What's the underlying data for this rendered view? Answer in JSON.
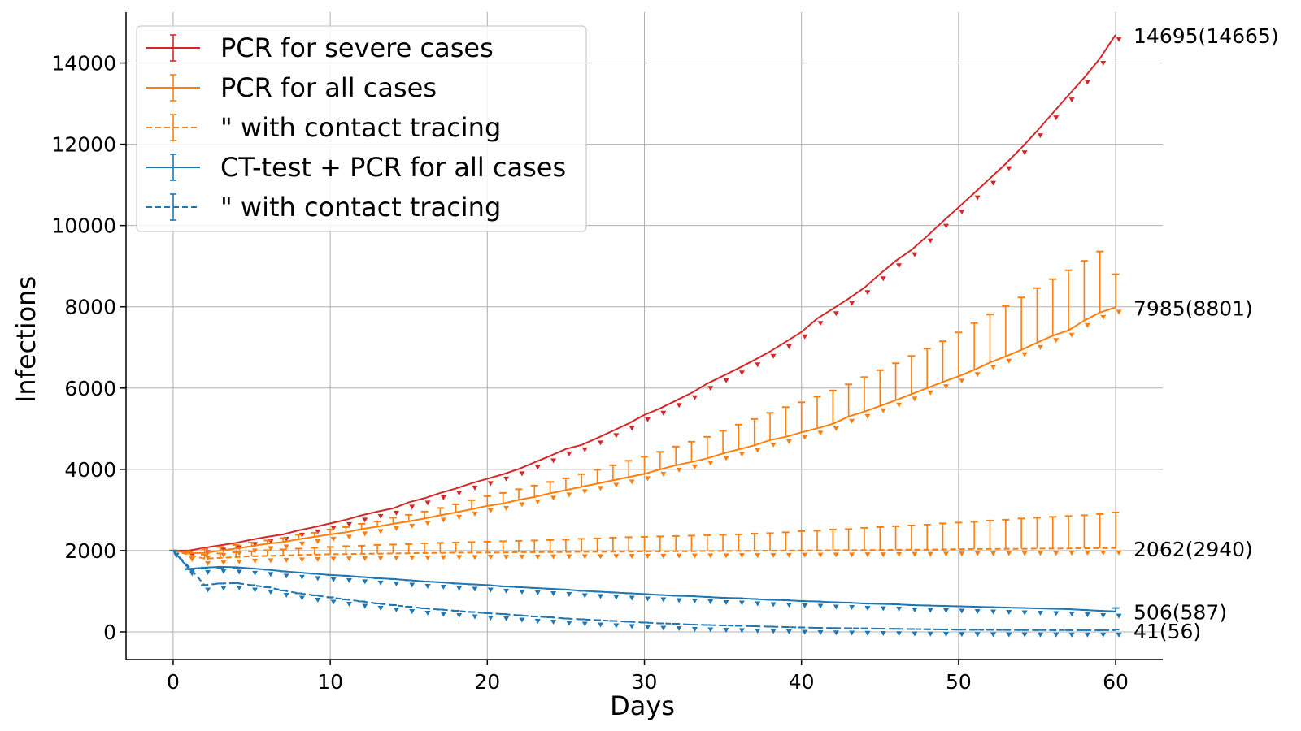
{
  "chart_data": {
    "type": "line",
    "xlabel": "Days",
    "ylabel": "Infections",
    "xlim": [
      -3,
      63
    ],
    "ylim": [
      -680,
      15250
    ],
    "xticks": [
      0,
      10,
      20,
      30,
      40,
      50,
      60
    ],
    "yticks": [
      0,
      2000,
      4000,
      6000,
      8000,
      10000,
      12000,
      14000
    ],
    "grid": true,
    "legend_position": "top-left",
    "x": [
      0,
      1,
      2,
      3,
      4,
      5,
      6,
      7,
      8,
      9,
      10,
      11,
      12,
      13,
      14,
      15,
      16,
      17,
      18,
      19,
      20,
      21,
      22,
      23,
      24,
      25,
      26,
      27,
      28,
      29,
      30,
      31,
      32,
      33,
      34,
      35,
      36,
      37,
      38,
      39,
      40,
      41,
      42,
      43,
      44,
      45,
      46,
      47,
      48,
      49,
      50,
      51,
      52,
      53,
      54,
      55,
      56,
      57,
      58,
      59,
      60
    ],
    "series": [
      {
        "name": "PCR for severe cases",
        "color": "#d62728",
        "dashed": false,
        "values": [
          2000,
          2000,
          2070,
          2130,
          2190,
          2270,
          2340,
          2400,
          2500,
          2580,
          2670,
          2760,
          2870,
          2960,
          3040,
          3190,
          3290,
          3420,
          3530,
          3660,
          3770,
          3880,
          4010,
          4170,
          4330,
          4500,
          4600,
          4770,
          4950,
          5130,
          5340,
          5500,
          5690,
          5880,
          6110,
          6300,
          6490,
          6690,
          6900,
          7140,
          7380,
          7710,
          7950,
          8200,
          8470,
          8810,
          9130,
          9400,
          9740,
          10100,
          10450,
          10800,
          11160,
          11520,
          11910,
          12330,
          12770,
          13210,
          13640,
          14110,
          14695
        ],
        "error_upper": [],
        "end_label": "14695(14665)"
      },
      {
        "name": "PCR for all cases",
        "color": "#ff7f0e",
        "dashed": false,
        "values": [
          2000,
          1940,
          1940,
          2000,
          2050,
          2110,
          2170,
          2210,
          2280,
          2340,
          2400,
          2450,
          2530,
          2590,
          2660,
          2720,
          2790,
          2870,
          2940,
          3020,
          3100,
          3160,
          3250,
          3320,
          3410,
          3490,
          3570,
          3650,
          3730,
          3810,
          3890,
          4000,
          4100,
          4180,
          4270,
          4390,
          4490,
          4590,
          4720,
          4800,
          4910,
          5010,
          5120,
          5300,
          5420,
          5560,
          5700,
          5850,
          6000,
          6150,
          6290,
          6450,
          6630,
          6780,
          6940,
          7120,
          7290,
          7420,
          7660,
          7860,
          7985
        ],
        "error_upper": [
          2000,
          1980,
          2040,
          2090,
          2140,
          2200,
          2250,
          2310,
          2390,
          2440,
          2520,
          2580,
          2660,
          2720,
          2810,
          2880,
          2960,
          3050,
          3140,
          3240,
          3340,
          3420,
          3510,
          3600,
          3690,
          3780,
          3880,
          3990,
          4100,
          4210,
          4310,
          4430,
          4560,
          4680,
          4800,
          4950,
          5100,
          5240,
          5390,
          5530,
          5650,
          5790,
          5940,
          6090,
          6270,
          6440,
          6610,
          6790,
          6970,
          7150,
          7370,
          7600,
          7810,
          8020,
          8230,
          8460,
          8680,
          8900,
          9130,
          9360,
          8801
        ],
        "end_label": "7985(8801)"
      },
      {
        "name": "\" with contact tracing",
        "color": "#ff7f0e",
        "dashed": true,
        "values": [
          2000,
          1900,
          1800,
          1820,
          1840,
          1860,
          1870,
          1880,
          1890,
          1900,
          1910,
          1915,
          1920,
          1925,
          1930,
          1935,
          1940,
          1945,
          1950,
          1950,
          1955,
          1955,
          1960,
          1960,
          1965,
          1965,
          1970,
          1970,
          1975,
          1975,
          1980,
          1980,
          1985,
          1985,
          1990,
          1990,
          1995,
          1995,
          2000,
          2000,
          2005,
          2005,
          2010,
          2010,
          2015,
          2015,
          2020,
          2025,
          2025,
          2030,
          2035,
          2040,
          2040,
          2045,
          2045,
          2050,
          2050,
          2055,
          2058,
          2060,
          2062
        ],
        "error_upper": [
          2000,
          1960,
          1900,
          1930,
          1960,
          1980,
          2010,
          2030,
          2050,
          2070,
          2090,
          2110,
          2120,
          2140,
          2150,
          2160,
          2180,
          2190,
          2200,
          2210,
          2220,
          2230,
          2240,
          2250,
          2260,
          2270,
          2290,
          2300,
          2320,
          2330,
          2340,
          2350,
          2360,
          2370,
          2380,
          2390,
          2400,
          2420,
          2430,
          2450,
          2480,
          2490,
          2520,
          2530,
          2560,
          2580,
          2600,
          2620,
          2640,
          2670,
          2690,
          2710,
          2740,
          2760,
          2790,
          2810,
          2830,
          2850,
          2870,
          2900,
          2940
        ],
        "end_label": "2062(2940)"
      },
      {
        "name": "CT-test + PCR for all cases",
        "color": "#1f77b4",
        "dashed": false,
        "values": [
          2000,
          1550,
          1580,
          1600,
          1590,
          1560,
          1530,
          1490,
          1460,
          1430,
          1400,
          1380,
          1350,
          1320,
          1300,
          1270,
          1240,
          1220,
          1190,
          1170,
          1150,
          1120,
          1100,
          1080,
          1060,
          1040,
          1010,
          990,
          970,
          950,
          930,
          910,
          890,
          880,
          860,
          840,
          830,
          810,
          790,
          780,
          760,
          750,
          730,
          720,
          700,
          690,
          680,
          660,
          650,
          640,
          630,
          620,
          610,
          600,
          590,
          580,
          570,
          560,
          540,
          520,
          506
        ],
        "error_upper": [
          2000,
          1540,
          1560,
          1570,
          1570,
          1560,
          1530,
          1490,
          1460,
          1430,
          1400,
          1380,
          1350,
          1320,
          1300,
          1270,
          1240,
          1220,
          1190,
          1170,
          1150,
          1120,
          1100,
          1080,
          1060,
          1040,
          1010,
          990,
          970,
          950,
          930,
          910,
          890,
          880,
          860,
          840,
          830,
          810,
          790,
          780,
          760,
          750,
          730,
          720,
          700,
          690,
          680,
          660,
          650,
          640,
          630,
          620,
          610,
          600,
          590,
          580,
          570,
          560,
          540,
          520,
          587
        ],
        "end_label": "506(587)"
      },
      {
        "name": "\" with contact tracing",
        "color": "#1f77b4",
        "dashed": true,
        "values": [
          2000,
          1600,
          1150,
          1190,
          1200,
          1150,
          1100,
          1020,
          950,
          900,
          850,
          800,
          750,
          700,
          660,
          620,
          580,
          550,
          520,
          490,
          460,
          440,
          410,
          380,
          360,
          330,
          310,
          290,
          270,
          250,
          230,
          210,
          200,
          180,
          170,
          160,
          150,
          140,
          130,
          120,
          110,
          100,
          95,
          90,
          85,
          80,
          75,
          70,
          65,
          60,
          55,
          52,
          50,
          48,
          46,
          45,
          44,
          43,
          42,
          41,
          41
        ],
        "error_upper": [
          2000,
          1550,
          1150,
          1190,
          1200,
          1150,
          1100,
          1020,
          950,
          900,
          850,
          800,
          750,
          700,
          660,
          620,
          580,
          550,
          520,
          490,
          460,
          440,
          410,
          380,
          360,
          330,
          310,
          290,
          270,
          250,
          230,
          210,
          200,
          180,
          170,
          160,
          150,
          140,
          130,
          120,
          110,
          100,
          95,
          90,
          85,
          80,
          75,
          70,
          65,
          60,
          55,
          52,
          50,
          48,
          46,
          45,
          44,
          43,
          42,
          41,
          56
        ],
        "end_label": "41(56)"
      }
    ]
  }
}
